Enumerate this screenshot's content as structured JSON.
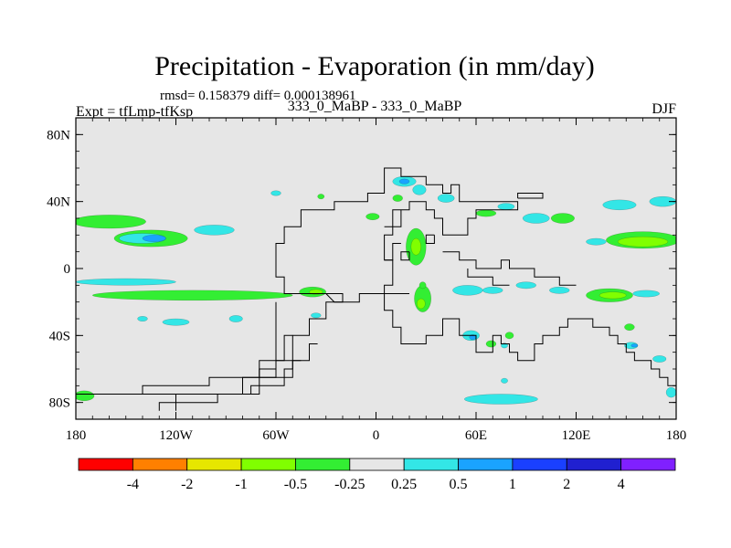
{
  "chart_data": {
    "type": "heatmap",
    "title": "Precipitation - Evaporation (in mm/day)",
    "stats_label": "rmsd= 0.158379 diff= 0.000138961",
    "experiment_label": "Expt = tfLmp-tfKsp",
    "comparison_label": "333_0_MaBP - 333_0_MaBP",
    "season_label": "DJF",
    "x_axis": {
      "range": [
        -180,
        180
      ],
      "ticks": [
        {
          "value": -180,
          "label": "180"
        },
        {
          "value": -120,
          "label": "120W"
        },
        {
          "value": -60,
          "label": "60W"
        },
        {
          "value": 0,
          "label": "0"
        },
        {
          "value": 60,
          "label": "60E"
        },
        {
          "value": 120,
          "label": "120E"
        },
        {
          "value": 180,
          "label": "180"
        }
      ]
    },
    "y_axis": {
      "range": [
        -90,
        90
      ],
      "ticks": [
        {
          "value": 80,
          "label": "80N"
        },
        {
          "value": 40,
          "label": "40N"
        },
        {
          "value": 0,
          "label": "0"
        },
        {
          "value": -40,
          "label": "40S"
        },
        {
          "value": -80,
          "label": "80S"
        }
      ]
    },
    "colorbar": {
      "colors": [
        "#ff0000",
        "#ff8000",
        "#e6e600",
        "#80ff00",
        "#33ee33",
        "#e6e6e6",
        "#33e6e6",
        "#1aa3ff",
        "#1a40ff",
        "#2020d0",
        "#8020ff"
      ],
      "labels": [
        "-4",
        "-2",
        "-1",
        "-0.5",
        "-0.25",
        "0.25",
        "0.5",
        "1",
        "2",
        "4"
      ]
    },
    "background_color": "#e6e6e6",
    "patches": [
      {
        "lon": -160,
        "lat": 28,
        "rx": 22,
        "ry": 4,
        "color": "#33ee33"
      },
      {
        "lon": -135,
        "lat": 18,
        "rx": 22,
        "ry": 5,
        "color": "#33ee33"
      },
      {
        "lon": -140,
        "lat": 18,
        "rx": 14,
        "ry": 3,
        "color": "#33e6e6"
      },
      {
        "lon": -133,
        "lat": 18,
        "rx": 7,
        "ry": 2,
        "color": "#1aa3ff"
      },
      {
        "lon": -97,
        "lat": 23,
        "rx": 12,
        "ry": 3,
        "color": "#33e6e6"
      },
      {
        "lon": -150,
        "lat": -8,
        "rx": 30,
        "ry": 2,
        "color": "#33e6e6"
      },
      {
        "lon": -110,
        "lat": -16,
        "rx": 60,
        "ry": 3,
        "color": "#33ee33"
      },
      {
        "lon": -38,
        "lat": -14,
        "rx": 8,
        "ry": 3,
        "color": "#33ee33"
      },
      {
        "lon": -36,
        "lat": -14,
        "rx": 4,
        "ry": 1.5,
        "color": "#80ff00"
      },
      {
        "lon": -140,
        "lat": -30,
        "rx": 3,
        "ry": 1.5,
        "color": "#33e6e6"
      },
      {
        "lon": -120,
        "lat": -32,
        "rx": 8,
        "ry": 2,
        "color": "#33e6e6"
      },
      {
        "lon": -84,
        "lat": -30,
        "rx": 4,
        "ry": 2,
        "color": "#33e6e6"
      },
      {
        "lon": -36,
        "lat": -28,
        "rx": 3,
        "ry": 1.5,
        "color": "#33e6e6"
      },
      {
        "lon": -175,
        "lat": -76,
        "rx": 6,
        "ry": 3,
        "color": "#33ee33"
      },
      {
        "lon": -60,
        "lat": 45,
        "rx": 3,
        "ry": 1.5,
        "color": "#33e6e6"
      },
      {
        "lon": -33,
        "lat": 43,
        "rx": 2,
        "ry": 1.5,
        "color": "#33ee33"
      },
      {
        "lon": -2,
        "lat": 31,
        "rx": 4,
        "ry": 2,
        "color": "#33ee33"
      },
      {
        "lon": 13,
        "lat": 42,
        "rx": 3,
        "ry": 2,
        "color": "#33ee33"
      },
      {
        "lon": 17,
        "lat": 52,
        "rx": 7,
        "ry": 3,
        "color": "#33e6e6"
      },
      {
        "lon": 17,
        "lat": 52,
        "rx": 3,
        "ry": 1.5,
        "color": "#1aa3ff"
      },
      {
        "lon": 26,
        "lat": 47,
        "rx": 4,
        "ry": 3,
        "color": "#33e6e6"
      },
      {
        "lon": 42,
        "lat": 42,
        "rx": 5,
        "ry": 2.5,
        "color": "#33e6e6"
      },
      {
        "lon": 66,
        "lat": 33,
        "rx": 6,
        "ry": 2,
        "color": "#33ee33"
      },
      {
        "lon": 78,
        "lat": 37,
        "rx": 5,
        "ry": 2,
        "color": "#33e6e6"
      },
      {
        "lon": 96,
        "lat": 30,
        "rx": 8,
        "ry": 3,
        "color": "#33e6e6"
      },
      {
        "lon": 112,
        "lat": 30,
        "rx": 7,
        "ry": 3,
        "color": "#33ee33"
      },
      {
        "lon": 146,
        "lat": 38,
        "rx": 10,
        "ry": 3,
        "color": "#33e6e6"
      },
      {
        "lon": 172,
        "lat": 40,
        "rx": 8,
        "ry": 3,
        "color": "#33e6e6"
      },
      {
        "lon": 160,
        "lat": 17,
        "rx": 22,
        "ry": 5,
        "color": "#33ee33"
      },
      {
        "lon": 160,
        "lat": 16,
        "rx": 15,
        "ry": 3,
        "color": "#80ff00"
      },
      {
        "lon": 132,
        "lat": 16,
        "rx": 6,
        "ry": 2,
        "color": "#33e6e6"
      },
      {
        "lon": 24,
        "lat": 13,
        "rx": 6,
        "ry": 11,
        "color": "#33ee33"
      },
      {
        "lon": 24,
        "lat": 13,
        "rx": 3,
        "ry": 5,
        "color": "#80ff00"
      },
      {
        "lon": 28,
        "lat": -18,
        "rx": 5,
        "ry": 8,
        "color": "#33ee33"
      },
      {
        "lon": 27,
        "lat": -21,
        "rx": 2.5,
        "ry": 3,
        "color": "#80ff00"
      },
      {
        "lon": 28,
        "lat": -10,
        "rx": 2,
        "ry": 2,
        "color": "#33ee33"
      },
      {
        "lon": 55,
        "lat": -13,
        "rx": 9,
        "ry": 3,
        "color": "#33e6e6"
      },
      {
        "lon": 70,
        "lat": -13,
        "rx": 6,
        "ry": 2,
        "color": "#33e6e6"
      },
      {
        "lon": 90,
        "lat": -10,
        "rx": 6,
        "ry": 2,
        "color": "#33e6e6"
      },
      {
        "lon": 110,
        "lat": -13,
        "rx": 6,
        "ry": 2,
        "color": "#33e6e6"
      },
      {
        "lon": 140,
        "lat": -16,
        "rx": 14,
        "ry": 4,
        "color": "#33ee33"
      },
      {
        "lon": 142,
        "lat": -16,
        "rx": 8,
        "ry": 2,
        "color": "#80ff00"
      },
      {
        "lon": 162,
        "lat": -15,
        "rx": 8,
        "ry": 2,
        "color": "#33e6e6"
      },
      {
        "lon": 57,
        "lat": -40,
        "rx": 5,
        "ry": 3,
        "color": "#33e6e6"
      },
      {
        "lon": 58,
        "lat": -41,
        "rx": 2,
        "ry": 1.5,
        "color": "#1aa3ff"
      },
      {
        "lon": 69,
        "lat": -45,
        "rx": 3,
        "ry": 2,
        "color": "#33ee33"
      },
      {
        "lon": 80,
        "lat": -40,
        "rx": 2.5,
        "ry": 2,
        "color": "#33ee33"
      },
      {
        "lon": 77,
        "lat": -46,
        "rx": 2,
        "ry": 1.5,
        "color": "#33e6e6"
      },
      {
        "lon": 152,
        "lat": -35,
        "rx": 3,
        "ry": 2,
        "color": "#33ee33"
      },
      {
        "lon": 153,
        "lat": -46,
        "rx": 4,
        "ry": 2,
        "color": "#33e6e6"
      },
      {
        "lon": 155,
        "lat": -46,
        "rx": 2,
        "ry": 1,
        "color": "#1aa3ff"
      },
      {
        "lon": 170,
        "lat": -54,
        "rx": 4,
        "ry": 2,
        "color": "#33e6e6"
      },
      {
        "lon": 177,
        "lat": -74,
        "rx": 3,
        "ry": 3,
        "color": "#33e6e6"
      },
      {
        "lon": 75,
        "lat": -78,
        "rx": 22,
        "ry": 3,
        "color": "#33e6e6"
      },
      {
        "lon": 77,
        "lat": -67,
        "rx": 2,
        "ry": 1.5,
        "color": "#33e6e6"
      }
    ],
    "coastlines": [
      [
        [
          -180,
          -75
        ],
        [
          -80,
          -75
        ],
        [
          -80,
          -65
        ],
        [
          -60,
          -65
        ],
        [
          -60,
          -55
        ],
        [
          -50,
          -55
        ],
        [
          -50,
          -40
        ],
        [
          -40,
          -40
        ],
        [
          -40,
          -30
        ],
        [
          -30,
          -30
        ],
        [
          -30,
          -20
        ],
        [
          -20,
          -20
        ],
        [
          -20,
          -15
        ],
        [
          -55,
          -15
        ],
        [
          -55,
          -5
        ],
        [
          -60,
          -5
        ],
        [
          -60,
          15
        ],
        [
          -55,
          15
        ],
        [
          -55,
          25
        ],
        [
          -45,
          25
        ],
        [
          -45,
          35
        ],
        [
          -25,
          35
        ],
        [
          -25,
          40
        ],
        [
          -5,
          40
        ],
        [
          -5,
          45
        ],
        [
          5,
          45
        ],
        [
          5,
          60
        ],
        [
          15,
          60
        ],
        [
          15,
          55
        ],
        [
          30,
          55
        ],
        [
          30,
          50
        ],
        [
          40,
          50
        ],
        [
          40,
          45
        ],
        [
          45,
          45
        ],
        [
          45,
          50
        ],
        [
          50,
          50
        ],
        [
          50,
          40
        ],
        [
          85,
          40
        ],
        [
          85,
          35
        ],
        [
          60,
          35
        ],
        [
          60,
          30
        ],
        [
          55,
          30
        ],
        [
          55,
          20
        ],
        [
          40,
          20
        ],
        [
          40,
          30
        ],
        [
          35,
          30
        ],
        [
          35,
          35
        ],
        [
          30,
          35
        ],
        [
          30,
          40
        ],
        [
          20,
          40
        ],
        [
          20,
          35
        ],
        [
          15,
          35
        ],
        [
          10,
          35
        ],
        [
          10,
          20
        ],
        [
          5,
          20
        ],
        [
          5,
          5
        ],
        [
          10,
          5
        ],
        [
          10,
          -10
        ],
        [
          5,
          -10
        ],
        [
          5,
          -25
        ],
        [
          10,
          -25
        ],
        [
          10,
          -35
        ],
        [
          15,
          -35
        ],
        [
          15,
          -45
        ],
        [
          30,
          -45
        ],
        [
          30,
          -40
        ],
        [
          40,
          -40
        ],
        [
          40,
          -30
        ],
        [
          50,
          -30
        ],
        [
          50,
          -40
        ],
        [
          60,
          -40
        ],
        [
          60,
          -50
        ],
        [
          70,
          -50
        ],
        [
          70,
          -40
        ],
        [
          75,
          -40
        ],
        [
          75,
          -45
        ],
        [
          80,
          -45
        ],
        [
          80,
          -50
        ],
        [
          85,
          -50
        ],
        [
          85,
          -55
        ],
        [
          95,
          -55
        ],
        [
          95,
          -45
        ],
        [
          100,
          -45
        ],
        [
          100,
          -40
        ],
        [
          110,
          -40
        ],
        [
          110,
          -35
        ],
        [
          115,
          -35
        ],
        [
          115,
          -30
        ],
        [
          130,
          -30
        ],
        [
          130,
          -35
        ],
        [
          140,
          -35
        ],
        [
          140,
          -40
        ],
        [
          145,
          -40
        ],
        [
          145,
          -45
        ],
        [
          150,
          -45
        ],
        [
          150,
          -50
        ],
        [
          155,
          -50
        ],
        [
          155,
          -55
        ],
        [
          165,
          -55
        ],
        [
          165,
          -60
        ],
        [
          170,
          -60
        ],
        [
          170,
          -65
        ],
        [
          175,
          -65
        ],
        [
          175,
          -70
        ],
        [
          180,
          -70
        ]
      ],
      [
        [
          -30,
          -15
        ],
        [
          -25,
          -20
        ],
        [
          -10,
          -20
        ],
        [
          -10,
          -15
        ],
        [
          20,
          -15
        ]
      ],
      [
        [
          -60,
          -20
        ],
        [
          -60,
          -60
        ],
        [
          -70,
          -60
        ],
        [
          -70,
          -65
        ],
        [
          -100,
          -65
        ],
        [
          -100,
          -70
        ],
        [
          -140,
          -70
        ],
        [
          -140,
          -75
        ]
      ],
      [
        [
          -50,
          -40
        ],
        [
          -55,
          -40
        ],
        [
          -55,
          -55
        ],
        [
          -70,
          -55
        ],
        [
          -70,
          -65
        ]
      ],
      [
        [
          -45,
          -55
        ],
        [
          -50,
          -55
        ],
        [
          -50,
          -65
        ],
        [
          -70,
          -65
        ],
        [
          -70,
          -75
        ],
        [
          -120,
          -75
        ],
        [
          -120,
          -80
        ],
        [
          -130,
          -80
        ],
        [
          -130,
          -85
        ]
      ],
      [
        [
          -35,
          -45
        ],
        [
          -40,
          -45
        ],
        [
          -40,
          -55
        ],
        [
          -50,
          -55
        ],
        [
          -50,
          -60
        ],
        [
          -55,
          -60
        ],
        [
          -55,
          -70
        ],
        [
          -75,
          -70
        ],
        [
          -75,
          -75
        ],
        [
          -95,
          -75
        ],
        [
          -95,
          -80
        ],
        [
          -120,
          -80
        ],
        [
          -120,
          -85
        ]
      ],
      [
        [
          5,
          25
        ],
        [
          15,
          25
        ],
        [
          15,
          35
        ]
      ],
      [
        [
          15,
          15
        ],
        [
          10,
          15
        ],
        [
          10,
          5
        ],
        [
          5,
          5
        ]
      ],
      [
        [
          20,
          10
        ],
        [
          15,
          10
        ],
        [
          15,
          5
        ],
        [
          20,
          5
        ],
        [
          20,
          10
        ]
      ],
      [
        [
          35,
          20
        ],
        [
          30,
          20
        ],
        [
          30,
          15
        ],
        [
          35,
          15
        ],
        [
          35,
          20
        ]
      ],
      [
        [
          40,
          10
        ],
        [
          50,
          10
        ],
        [
          50,
          5
        ],
        [
          60,
          5
        ],
        [
          60,
          0
        ],
        [
          75,
          0
        ],
        [
          75,
          5
        ],
        [
          80,
          5
        ],
        [
          80,
          0
        ],
        [
          95,
          0
        ],
        [
          95,
          -5
        ],
        [
          110,
          -5
        ],
        [
          110,
          -10
        ],
        [
          120,
          -10
        ]
      ],
      [
        [
          55,
          0
        ],
        [
          55,
          -5
        ],
        [
          70,
          -5
        ],
        [
          70,
          -10
        ],
        [
          80,
          -10
        ]
      ],
      [
        [
          85,
          42
        ],
        [
          85,
          45
        ],
        [
          100,
          45
        ],
        [
          100,
          42
        ],
        [
          85,
          42
        ]
      ]
    ]
  }
}
